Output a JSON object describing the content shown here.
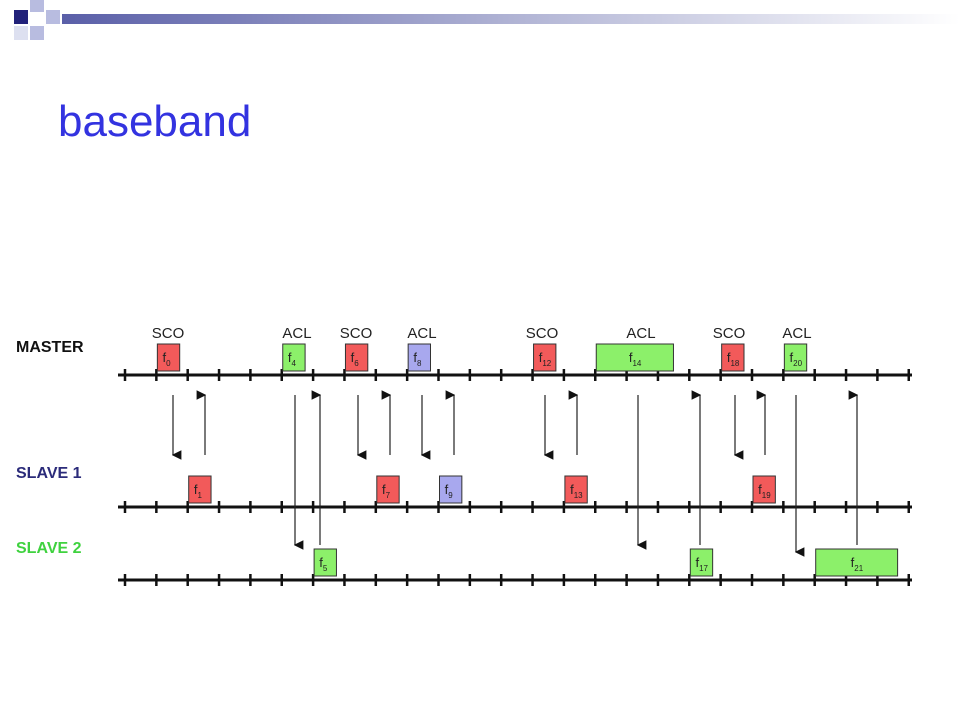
{
  "header": {
    "title": "baseband"
  },
  "diagram": {
    "slot_labels": [
      "SCO",
      "ACL",
      "SCO",
      "ACL",
      "SCO",
      "ACL",
      "SCO",
      "ACL"
    ],
    "rows": [
      {
        "label": "MASTER",
        "packets": [
          {
            "letter": "f",
            "index": "0"
          },
          {
            "letter": "f",
            "index": "4"
          },
          {
            "letter": "f",
            "index": "6"
          },
          {
            "letter": "f",
            "index": "8"
          },
          {
            "letter": "f",
            "index": "12"
          },
          {
            "letter": "f",
            "index": "14"
          },
          {
            "letter": "f",
            "index": "18"
          },
          {
            "letter": "f",
            "index": "20"
          }
        ]
      },
      {
        "label": "SLAVE 1",
        "packets": [
          {
            "letter": "f",
            "index": "1"
          },
          {
            "letter": "f",
            "index": "7"
          },
          {
            "letter": "f",
            "index": "9"
          },
          {
            "letter": "f",
            "index": "13"
          },
          {
            "letter": "f",
            "index": "19"
          }
        ]
      },
      {
        "label": "SLAVE 2",
        "packets": [
          {
            "letter": "f",
            "index": "5"
          },
          {
            "letter": "f",
            "index": "17"
          },
          {
            "letter": "f",
            "index": "21"
          }
        ]
      }
    ]
  }
}
